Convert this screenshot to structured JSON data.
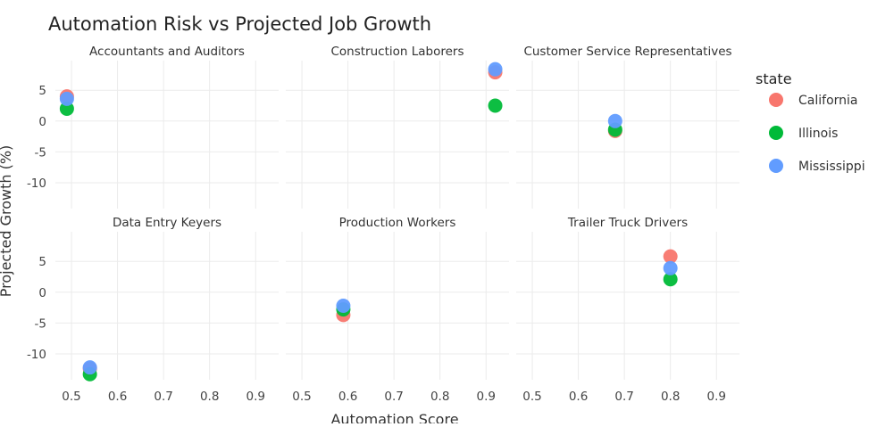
{
  "chart_data": {
    "type": "scatter",
    "title": "Automation Risk vs Projected Job Growth",
    "xlabel": "Automation Score",
    "ylabel": "Projected Growth (%)",
    "xlim": [
      0.465,
      0.95
    ],
    "ylim": [
      -14.2,
      9.8
    ],
    "xticks": [
      0.5,
      0.6,
      0.7,
      0.8,
      0.9
    ],
    "xtick_labels": [
      "0.5",
      "0.6",
      "0.7",
      "0.8",
      "0.9"
    ],
    "yticks": [
      5,
      0,
      -5,
      -10
    ],
    "ytick_labels": [
      "5",
      "0",
      "-5",
      "-10"
    ],
    "grid": true,
    "legend": {
      "title": "state",
      "placement": "right",
      "entries": [
        "California",
        "Illinois",
        "Mississippi"
      ]
    },
    "colors": {
      "California": "#F8766D",
      "Illinois": "#00BA38",
      "Mississippi": "#619CFF",
      "grid": "#ebebeb",
      "text": "#444444"
    },
    "facets": [
      {
        "name": "Accountants and Auditors",
        "points": [
          {
            "state": "California",
            "x": 0.49,
            "y": 4.0
          },
          {
            "state": "Illinois",
            "x": 0.49,
            "y": 2.0
          },
          {
            "state": "Mississippi",
            "x": 0.49,
            "y": 3.6
          }
        ]
      },
      {
        "name": "Construction Laborers",
        "points": [
          {
            "state": "California",
            "x": 0.92,
            "y": 7.9
          },
          {
            "state": "Illinois",
            "x": 0.92,
            "y": 2.5
          },
          {
            "state": "Mississippi",
            "x": 0.92,
            "y": 8.4
          }
        ]
      },
      {
        "name": "Customer Service Representatives",
        "points": [
          {
            "state": "California",
            "x": 0.68,
            "y": -1.6
          },
          {
            "state": "Illinois",
            "x": 0.68,
            "y": -1.4
          },
          {
            "state": "Mississippi",
            "x": 0.68,
            "y": 0.0
          }
        ]
      },
      {
        "name": "Data Entry Keyers",
        "points": [
          {
            "state": "California",
            "x": 0.54,
            "y": -12.4
          },
          {
            "state": "Illinois",
            "x": 0.54,
            "y": -13.3
          },
          {
            "state": "Mississippi",
            "x": 0.54,
            "y": -12.2
          }
        ]
      },
      {
        "name": "Production Workers",
        "points": [
          {
            "state": "California",
            "x": 0.59,
            "y": -3.7
          },
          {
            "state": "Illinois",
            "x": 0.59,
            "y": -2.8
          },
          {
            "state": "Mississippi",
            "x": 0.59,
            "y": -2.2
          }
        ]
      },
      {
        "name": "Trailer Truck Drivers",
        "points": [
          {
            "state": "California",
            "x": 0.8,
            "y": 5.8
          },
          {
            "state": "Illinois",
            "x": 0.8,
            "y": 2.1
          },
          {
            "state": "Mississippi",
            "x": 0.8,
            "y": 3.9
          }
        ]
      }
    ]
  }
}
